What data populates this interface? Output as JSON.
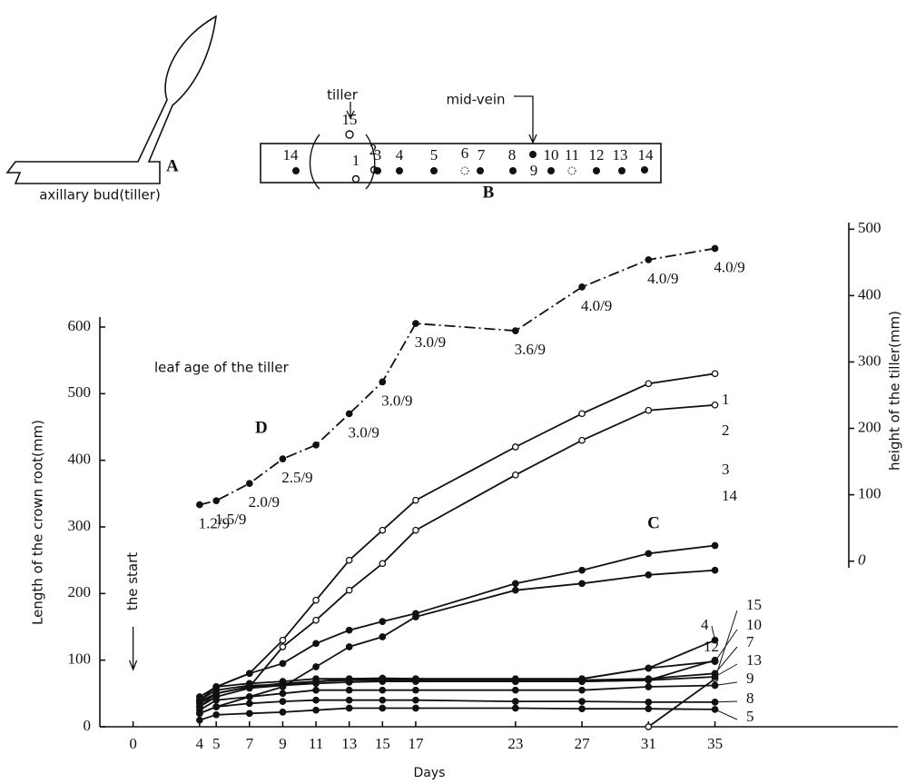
{
  "panel_a": {
    "label": "A",
    "caption": "axillary bud(tiller)"
  },
  "panel_b": {
    "label": "B",
    "tiller": "tiller",
    "mid_vein": "mid-vein",
    "numbers": [
      "14",
      "15",
      "1",
      "2",
      "3",
      "4",
      "5",
      "6",
      "7",
      "8",
      "9",
      "10",
      "11",
      "12",
      "13",
      "14"
    ]
  },
  "chart_data": {
    "type": "line",
    "xlabel": "Days",
    "ylabel": "Length of the crown root(mm)",
    "y2label": "height of the tiller(mm)",
    "x": [
      4,
      5,
      7,
      9,
      11,
      13,
      15,
      17,
      23,
      27,
      31,
      35
    ],
    "xlim": [
      -2,
      46
    ],
    "xticks": [
      0,
      4,
      5,
      7,
      9,
      11,
      13,
      15,
      17,
      23,
      27,
      31,
      35
    ],
    "ylim": [
      0,
      615
    ],
    "yticks": [
      0,
      100,
      200,
      300,
      400,
      500,
      600
    ],
    "y2lim": [
      -10,
      510
    ],
    "y2ticks": [
      0,
      100,
      200,
      300,
      400,
      500
    ],
    "series": [
      {
        "name": "1",
        "color": "#111111",
        "marker": "open",
        "values": [
          40,
          60,
          80,
          130,
          190,
          250,
          295,
          340,
          420,
          470,
          515,
          530
        ]
      },
      {
        "name": "2",
        "color": "#111111",
        "marker": "open",
        "values": [
          30,
          50,
          60,
          120,
          160,
          205,
          245,
          295,
          378,
          430,
          475,
          483
        ]
      },
      {
        "name": "3",
        "color": "#111111",
        "marker": "filled",
        "values": [
          40,
          60,
          80,
          95,
          125,
          145,
          158,
          170,
          215,
          235,
          260,
          272
        ]
      },
      {
        "name": "14",
        "color": "#111111",
        "marker": "filled",
        "values": [
          20,
          30,
          45,
          60,
          90,
          120,
          135,
          165,
          205,
          215,
          228,
          235
        ]
      },
      {
        "name": "4",
        "color": "#111111",
        "marker": "filled",
        "values": [
          40,
          55,
          62,
          63,
          68,
          72,
          73,
          72,
          72,
          72,
          88,
          130
        ]
      },
      {
        "name": "12",
        "color": "#111111",
        "marker": "filled",
        "values": [
          38,
          50,
          60,
          62,
          68,
          70,
          70,
          70,
          68,
          68,
          70,
          100
        ]
      },
      {
        "name": "15",
        "color": "#111111",
        "marker": "open",
        "values": [
          null,
          null,
          null,
          null,
          null,
          null,
          null,
          null,
          null,
          null,
          0,
          72
        ]
      },
      {
        "name": "10",
        "color": "#111111",
        "marker": "filled",
        "values": [
          45,
          60,
          65,
          68,
          72,
          72,
          72,
          72,
          70,
          72,
          88,
          98
        ]
      },
      {
        "name": "7",
        "color": "#111111",
        "marker": "filled",
        "values": [
          35,
          50,
          60,
          65,
          68,
          70,
          70,
          70,
          70,
          70,
          72,
          80
        ]
      },
      {
        "name": "13",
        "color": "#111111",
        "marker": "filled",
        "values": [
          30,
          45,
          58,
          62,
          65,
          67,
          68,
          68,
          68,
          68,
          70,
          75
        ]
      },
      {
        "name": "9",
        "color": "#111111",
        "marker": "filled",
        "values": [
          25,
          40,
          45,
          50,
          55,
          55,
          55,
          55,
          55,
          55,
          60,
          62
        ]
      },
      {
        "name": "8",
        "color": "#111111",
        "marker": "filled",
        "values": [
          20,
          30,
          35,
          38,
          40,
          40,
          40,
          40,
          38,
          38,
          37,
          37
        ]
      },
      {
        "name": "5",
        "color": "#111111",
        "marker": "filled",
        "values": [
          10,
          18,
          20,
          22,
          25,
          28,
          28,
          28,
          28,
          27,
          27,
          26
        ]
      },
      {
        "name": "D",
        "color": "#111111",
        "marker": "filled",
        "axis": "y2",
        "style": "dash-dot",
        "values": [
          85,
          91,
          117,
          154,
          175,
          222,
          270,
          358,
          347,
          413,
          454,
          471
        ],
        "value_labels": [
          "1.2/9",
          "1.5/9",
          "2.0/9",
          "2.5/9",
          null,
          "3.0/9",
          "3.0/9",
          "3.0/9",
          "3.6/9",
          "4.0/9",
          "4.0/9",
          "4.0/9"
        ]
      }
    ],
    "annotations": [
      {
        "text": "leaf age of the tiller"
      },
      {
        "text": "C"
      },
      {
        "text": "the start",
        "x": 0
      }
    ]
  }
}
